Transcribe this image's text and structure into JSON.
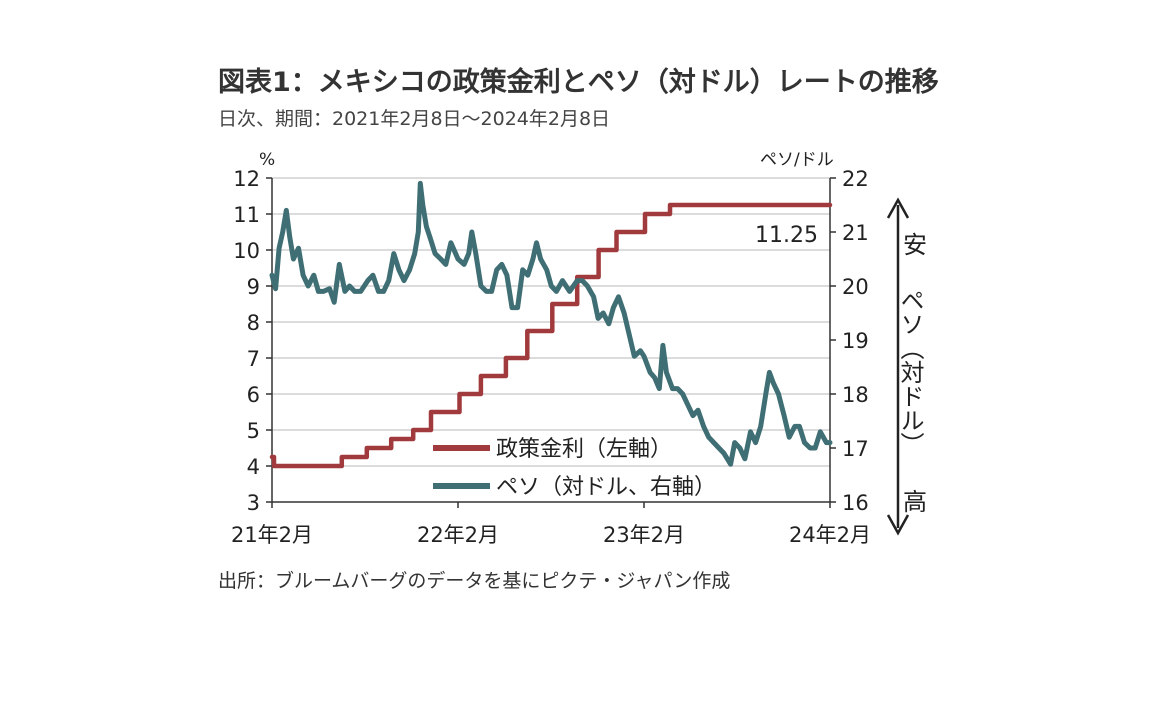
{
  "title": "図表1：メキシコの政策金利とペソ（対ドル）レートの推移",
  "subtitle": "日次、期間：2021年2月8日～2024年2月8日",
  "source": "出所：ブルームバーグのデータを基にピクテ・ジャパン作成",
  "colors": {
    "rate": "#a13a3d",
    "peso": "#3f6f74",
    "grid": "#d0d0d0",
    "axis": "#333333"
  },
  "chart_data": {
    "type": "line",
    "left_unit": "%",
    "right_unit": "ペソ/ドル",
    "left_ylim": [
      3,
      12
    ],
    "right_ylim": [
      16,
      22
    ],
    "left_ticks": [
      "3",
      "4",
      "5",
      "6",
      "7",
      "8",
      "9",
      "10",
      "11",
      "12"
    ],
    "right_ticks": [
      "16",
      "17",
      "18",
      "19",
      "20",
      "21",
      "22"
    ],
    "x_range": [
      "2021-02-08",
      "2024-02-08"
    ],
    "x_ticks": [
      {
        "date": "2021-02-08",
        "label": "21年2月"
      },
      {
        "date": "2022-02-08",
        "label": "22年2月"
      },
      {
        "date": "2023-02-08",
        "label": "23年2月"
      },
      {
        "date": "2024-02-08",
        "label": "24年2月"
      }
    ],
    "grid": true,
    "legend_position": "bottom-center",
    "right_side_label_top": "安",
    "right_side_label_mid": "ペソ（対ドル）",
    "right_side_label_bottom": "高",
    "annotation": "11.25",
    "series": [
      {
        "name": "政策金利（左軸）",
        "axis": "left",
        "step": true,
        "points": [
          [
            "2021-02-08",
            4.25
          ],
          [
            "2021-02-12",
            4.0
          ],
          [
            "2021-06-25",
            4.25
          ],
          [
            "2021-08-13",
            4.5
          ],
          [
            "2021-09-30",
            4.75
          ],
          [
            "2021-11-12",
            5.0
          ],
          [
            "2021-12-17",
            5.5
          ],
          [
            "2022-02-11",
            6.0
          ],
          [
            "2022-03-25",
            6.5
          ],
          [
            "2022-05-13",
            7.0
          ],
          [
            "2022-06-24",
            7.75
          ],
          [
            "2022-08-12",
            8.5
          ],
          [
            "2022-09-30",
            9.25
          ],
          [
            "2022-11-11",
            10.0
          ],
          [
            "2022-12-16",
            10.5
          ],
          [
            "2023-02-10",
            11.0
          ],
          [
            "2023-03-31",
            11.25
          ],
          [
            "2024-02-08",
            11.25
          ]
        ]
      },
      {
        "name": "ペソ（対ドル、右軸）",
        "axis": "right",
        "step": false,
        "points": [
          [
            "2021-02-08",
            20.2
          ],
          [
            "2021-02-15",
            19.95
          ],
          [
            "2021-02-22",
            20.7
          ],
          [
            "2021-03-01",
            21.0
          ],
          [
            "2021-03-08",
            21.4
          ],
          [
            "2021-03-15",
            20.9
          ],
          [
            "2021-03-22",
            20.5
          ],
          [
            "2021-04-01",
            20.7
          ],
          [
            "2021-04-10",
            20.2
          ],
          [
            "2021-04-20",
            20.0
          ],
          [
            "2021-05-01",
            20.2
          ],
          [
            "2021-05-10",
            19.9
          ],
          [
            "2021-05-20",
            19.9
          ],
          [
            "2021-06-01",
            19.95
          ],
          [
            "2021-06-10",
            19.7
          ],
          [
            "2021-06-20",
            20.4
          ],
          [
            "2021-07-01",
            19.9
          ],
          [
            "2021-07-10",
            20.0
          ],
          [
            "2021-07-20",
            19.9
          ],
          [
            "2021-08-01",
            19.9
          ],
          [
            "2021-08-15",
            20.1
          ],
          [
            "2021-08-25",
            20.2
          ],
          [
            "2021-09-05",
            19.9
          ],
          [
            "2021-09-15",
            19.9
          ],
          [
            "2021-09-25",
            20.1
          ],
          [
            "2021-10-05",
            20.6
          ],
          [
            "2021-10-15",
            20.3
          ],
          [
            "2021-10-25",
            20.1
          ],
          [
            "2021-11-05",
            20.3
          ],
          [
            "2021-11-15",
            20.6
          ],
          [
            "2021-11-22",
            21.0
          ],
          [
            "2021-11-26",
            21.9
          ],
          [
            "2021-12-01",
            21.5
          ],
          [
            "2021-12-08",
            21.1
          ],
          [
            "2021-12-15",
            20.9
          ],
          [
            "2021-12-25",
            20.6
          ],
          [
            "2022-01-05",
            20.5
          ],
          [
            "2022-01-15",
            20.4
          ],
          [
            "2022-01-25",
            20.8
          ],
          [
            "2022-02-08",
            20.5
          ],
          [
            "2022-02-20",
            20.4
          ],
          [
            "2022-03-01",
            20.6
          ],
          [
            "2022-03-07",
            21.0
          ],
          [
            "2022-03-15",
            20.6
          ],
          [
            "2022-03-25",
            20.0
          ],
          [
            "2022-04-05",
            19.9
          ],
          [
            "2022-04-15",
            19.9
          ],
          [
            "2022-04-25",
            20.3
          ],
          [
            "2022-05-05",
            20.4
          ],
          [
            "2022-05-15",
            20.2
          ],
          [
            "2022-05-25",
            19.6
          ],
          [
            "2022-06-05",
            19.6
          ],
          [
            "2022-06-15",
            20.3
          ],
          [
            "2022-06-25",
            20.2
          ],
          [
            "2022-07-05",
            20.5
          ],
          [
            "2022-07-12",
            20.8
          ],
          [
            "2022-07-20",
            20.5
          ],
          [
            "2022-08-01",
            20.3
          ],
          [
            "2022-08-10",
            20.0
          ],
          [
            "2022-08-20",
            19.9
          ],
          [
            "2022-09-01",
            20.1
          ],
          [
            "2022-09-15",
            19.9
          ],
          [
            "2022-09-30",
            20.1
          ],
          [
            "2022-10-10",
            20.1
          ],
          [
            "2022-10-20",
            20.0
          ],
          [
            "2022-11-01",
            19.8
          ],
          [
            "2022-11-10",
            19.4
          ],
          [
            "2022-11-20",
            19.5
          ],
          [
            "2022-12-01",
            19.3
          ],
          [
            "2022-12-10",
            19.6
          ],
          [
            "2022-12-20",
            19.8
          ],
          [
            "2022-12-31",
            19.5
          ],
          [
            "2023-01-10",
            19.1
          ],
          [
            "2023-01-20",
            18.7
          ],
          [
            "2023-02-01",
            18.8
          ],
          [
            "2023-02-08",
            18.7
          ],
          [
            "2023-02-20",
            18.4
          ],
          [
            "2023-03-01",
            18.3
          ],
          [
            "2023-03-10",
            18.1
          ],
          [
            "2023-03-17",
            18.9
          ],
          [
            "2023-03-24",
            18.4
          ],
          [
            "2023-04-05",
            18.1
          ],
          [
            "2023-04-15",
            18.1
          ],
          [
            "2023-04-25",
            18.0
          ],
          [
            "2023-05-05",
            17.8
          ],
          [
            "2023-05-15",
            17.6
          ],
          [
            "2023-05-25",
            17.7
          ],
          [
            "2023-06-05",
            17.4
          ],
          [
            "2023-06-15",
            17.2
          ],
          [
            "2023-06-25",
            17.1
          ],
          [
            "2023-07-05",
            17.0
          ],
          [
            "2023-07-15",
            16.9
          ],
          [
            "2023-07-28",
            16.7
          ],
          [
            "2023-08-05",
            17.1
          ],
          [
            "2023-08-15",
            17.0
          ],
          [
            "2023-08-25",
            16.8
          ],
          [
            "2023-09-05",
            17.3
          ],
          [
            "2023-09-15",
            17.1
          ],
          [
            "2023-09-25",
            17.4
          ],
          [
            "2023-10-05",
            18.0
          ],
          [
            "2023-10-12",
            18.4
          ],
          [
            "2023-10-20",
            18.2
          ],
          [
            "2023-10-30",
            18.0
          ],
          [
            "2023-11-10",
            17.6
          ],
          [
            "2023-11-20",
            17.2
          ],
          [
            "2023-12-01",
            17.4
          ],
          [
            "2023-12-10",
            17.4
          ],
          [
            "2023-12-20",
            17.1
          ],
          [
            "2023-12-31",
            17.0
          ],
          [
            "2024-01-10",
            17.0
          ],
          [
            "2024-01-20",
            17.3
          ],
          [
            "2024-02-01",
            17.1
          ],
          [
            "2024-02-08",
            17.1
          ]
        ]
      }
    ]
  }
}
